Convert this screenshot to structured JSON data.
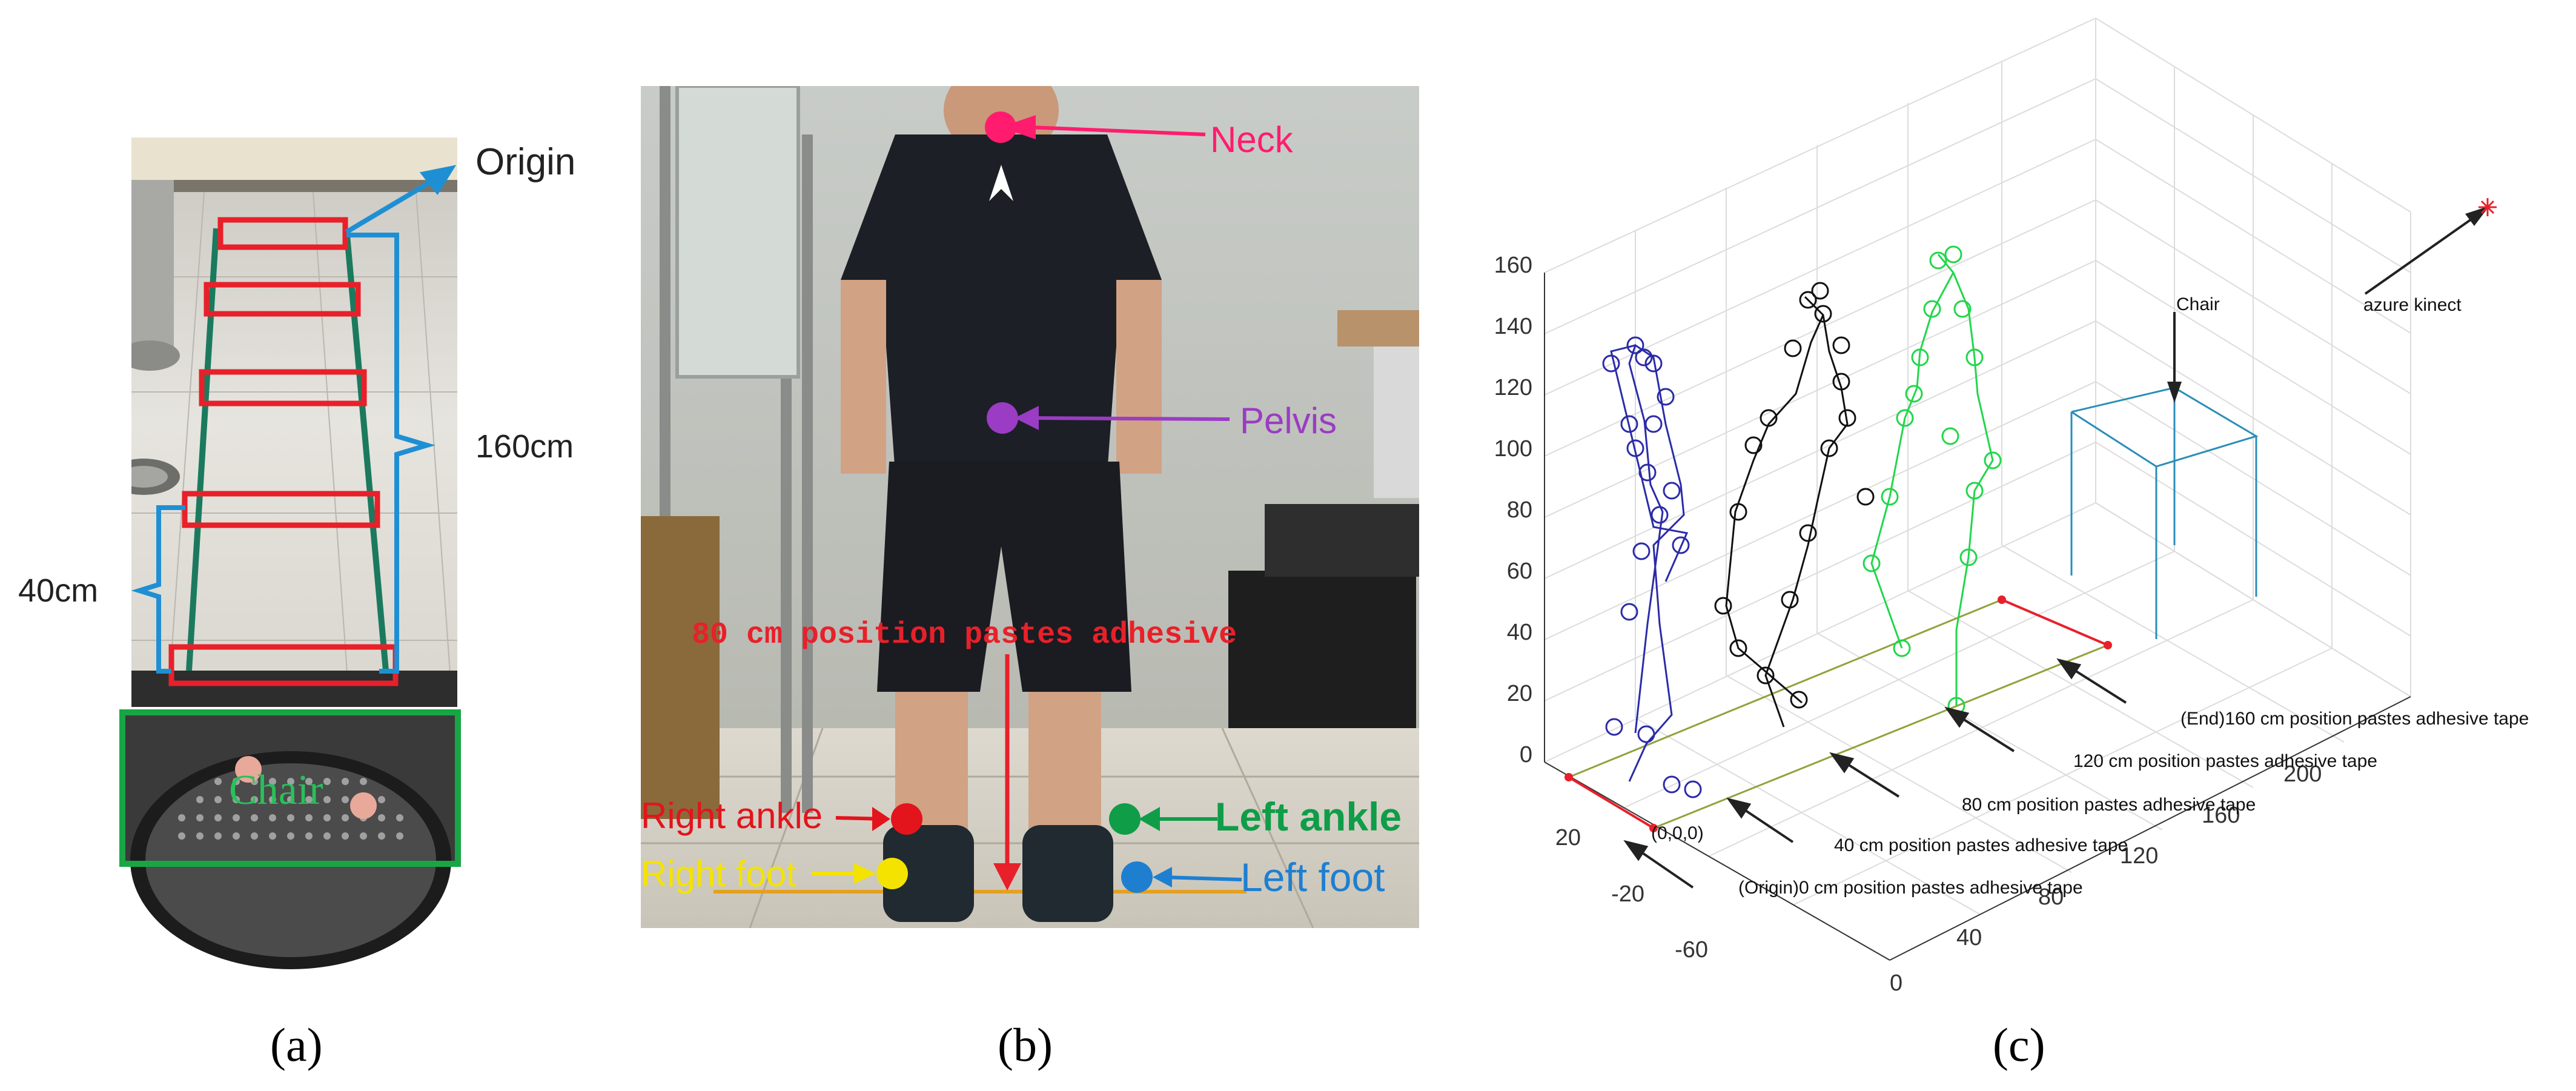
{
  "captions": {
    "a": "(a)",
    "b": "(b)",
    "c": "(c)"
  },
  "panel_a": {
    "origin_label": "Origin",
    "distance_160_label": "160cm",
    "distance_40_label": "40cm",
    "chair_label": "Chair",
    "colors": {
      "tape_boxes": "#e8202a",
      "brace": "#1f8fd4",
      "chair_box": "#18a645",
      "chair_text": "#27c15a"
    }
  },
  "panel_b": {
    "neck_label": "Neck",
    "pelvis_label": "Pelvis",
    "tape_label": "80 cm position pastes adhesive",
    "right_ankle_label": "Right ankle",
    "left_ankle_label": "Left ankle",
    "right_foot_label": "Right foot",
    "left_foot_label": "Left foot",
    "colors": {
      "neck": "#ff1c6e",
      "pelvis": "#9b3cc4",
      "right_ankle": "#e3141c",
      "left_ankle": "#0f9d48",
      "right_foot": "#f4e300",
      "left_foot": "#1e7fd1",
      "tape_text": "#e8202a"
    }
  },
  "panel_c": {
    "z_ticks": [
      "0",
      "20",
      "40",
      "60",
      "80",
      "100",
      "120",
      "140",
      "160"
    ],
    "y_ticks": [
      "20",
      "-20",
      "-60"
    ],
    "x_ticks": [
      "0",
      "40",
      "80",
      "120",
      "160",
      "200"
    ],
    "chair_label": "Chair",
    "sensor_label": "azure kinect",
    "origin_coord_label": "(0,0,0)",
    "tape_labels": [
      "(Origin)0 cm position pastes adhesive tape",
      "40 cm position pastes adhesive tape",
      "80 cm position pastes adhesive tape",
      "120 cm position pastes adhesive tape",
      "(End)160 cm position pastes adhesive tape"
    ],
    "colors": {
      "skeleton_1": "#2b2ba8",
      "skeleton_2": "#111111",
      "skeleton_3": "#22d64a",
      "chair": "#2a8db8",
      "floor_line": "#8fa33b",
      "tape_marker": "#e8202a",
      "grid": "#dcdcdc"
    }
  }
}
